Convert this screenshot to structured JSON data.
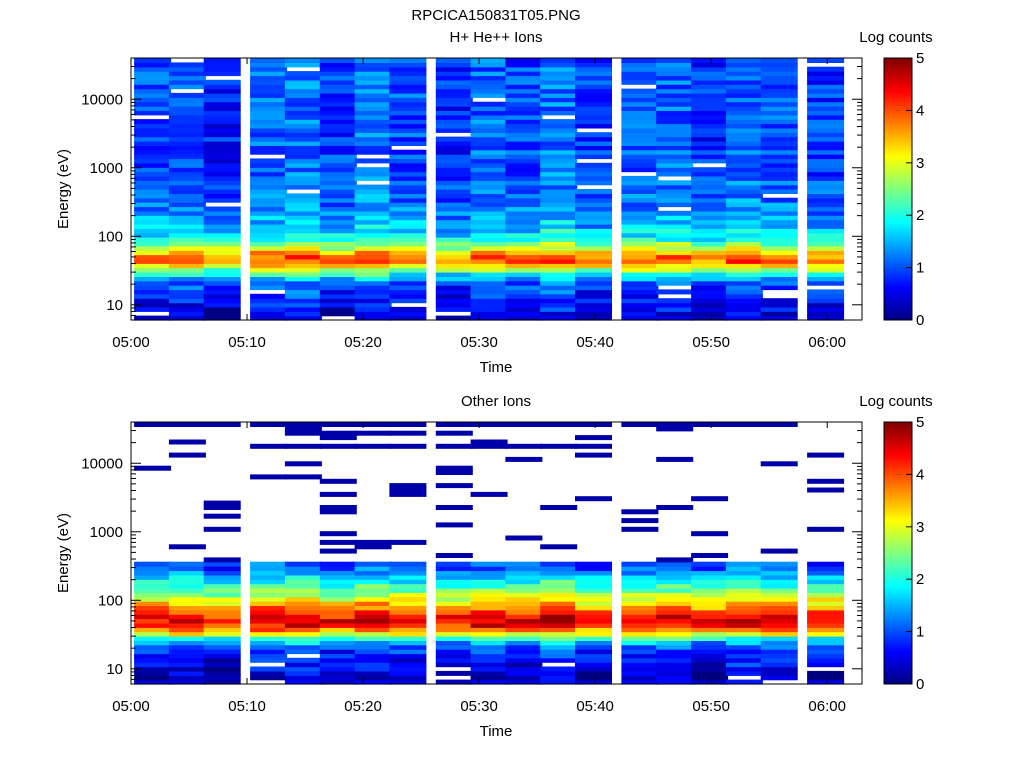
{
  "figure_title": "RPCICA150831T05.PNG",
  "chart_data": [
    {
      "type": "heatmap",
      "title": "H+ He++ Ions",
      "xlabel": "Time",
      "ylabel": "Energy (eV)",
      "x_ticks": [
        "05:00",
        "05:10",
        "05:20",
        "05:30",
        "05:40",
        "05:50",
        "06:00"
      ],
      "x_range": [
        "05:00",
        "06:03"
      ],
      "y_scale": "log",
      "y_ticks": [
        "10",
        "100",
        "1000",
        "10000"
      ],
      "y_range": [
        6,
        40000
      ],
      "colorbar": {
        "label": "Log counts",
        "range": [
          0,
          5
        ],
        "ticks": [
          "0",
          "1",
          "2",
          "3",
          "4",
          "5"
        ]
      },
      "columns": [
        "05:01",
        "05:04",
        "05:07",
        "05:11",
        "05:14",
        "05:17",
        "05:20",
        "05:23",
        "05:27",
        "05:30",
        "05:33",
        "05:36",
        "05:39",
        "05:43",
        "05:46",
        "05:49",
        "05:52",
        "05:55",
        "05:59"
      ],
      "energy_profile_log_counts": {
        "energy_eV": [
          7,
          10,
          14,
          20,
          27,
          35,
          45,
          55,
          70,
          90,
          150,
          300,
          1000,
          3000,
          10000,
          35000
        ],
        "approx_log_counts": [
          0.5,
          0.6,
          0.8,
          1.0,
          1.8,
          3.0,
          4.0,
          3.6,
          2.8,
          2.0,
          1.5,
          1.2,
          1.0,
          1.0,
          1.0,
          1.0
        ]
      }
    },
    {
      "type": "heatmap",
      "title": "Other Ions",
      "xlabel": "Time",
      "ylabel": "Energy (eV)",
      "x_ticks": [
        "05:00",
        "05:10",
        "05:20",
        "05:30",
        "05:40",
        "05:50",
        "06:00"
      ],
      "x_range": [
        "05:00",
        "06:03"
      ],
      "y_scale": "log",
      "y_ticks": [
        "10",
        "100",
        "1000",
        "10000"
      ],
      "y_range": [
        6,
        40000
      ],
      "colorbar": {
        "label": "Log counts",
        "range": [
          0,
          5
        ],
        "ticks": [
          "0",
          "1",
          "2",
          "3",
          "4",
          "5"
        ]
      },
      "columns": [
        "05:01",
        "05:04",
        "05:07",
        "05:11",
        "05:14",
        "05:17",
        "05:20",
        "05:23",
        "05:27",
        "05:30",
        "05:33",
        "05:36",
        "05:39",
        "05:43",
        "05:46",
        "05:49",
        "05:52",
        "05:55",
        "05:59"
      ],
      "energy_profile_log_counts": {
        "energy_eV": [
          7,
          10,
          14,
          20,
          27,
          35,
          45,
          55,
          70,
          90,
          130,
          200,
          300
        ],
        "approx_log_counts": [
          0.3,
          0.5,
          0.7,
          0.9,
          1.8,
          3.5,
          4.4,
          4.5,
          4.0,
          3.4,
          2.6,
          1.8,
          1.0
        ]
      },
      "sparse_high_energy": "isolated dark-blue (log counts ~0.2) bins up to ~40000 eV"
    }
  ]
}
